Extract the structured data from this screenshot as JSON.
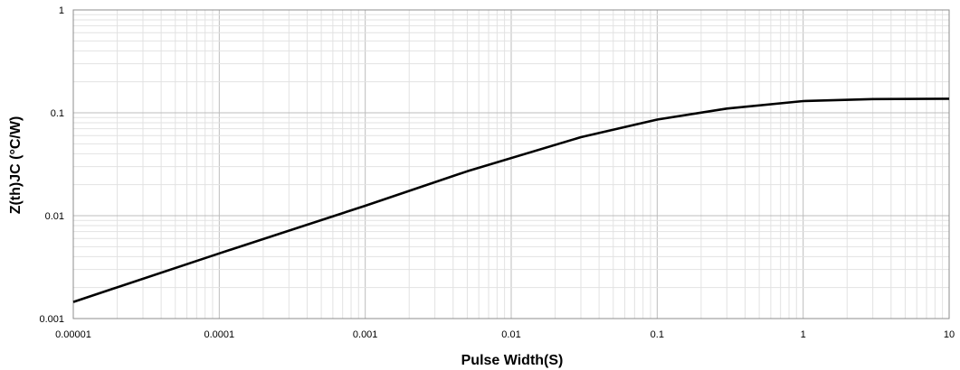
{
  "chart_data": {
    "type": "line",
    "title": "",
    "xlabel": "Pulse Width(S)",
    "ylabel": "Z(th)JC (°C/W)",
    "x_scale": "log",
    "y_scale": "log",
    "xlim": [
      1e-05,
      10
    ],
    "ylim": [
      0.001,
      1
    ],
    "x_ticks": [
      "0.00001",
      "0.0001",
      "0.001",
      "0.01",
      "0.1",
      "1",
      "10"
    ],
    "y_ticks": [
      "0.001",
      "0.01",
      "0.1",
      "1"
    ],
    "grid": true,
    "legend": "none",
    "series": [
      {
        "color": "#000000",
        "x": [
          1e-05,
          0.0001,
          0.001,
          0.005,
          0.03,
          0.1,
          0.3,
          1,
          3,
          10
        ],
        "y": [
          0.00145,
          0.0043,
          0.0125,
          0.027,
          0.058,
          0.086,
          0.11,
          0.13,
          0.136,
          0.137
        ]
      }
    ]
  }
}
